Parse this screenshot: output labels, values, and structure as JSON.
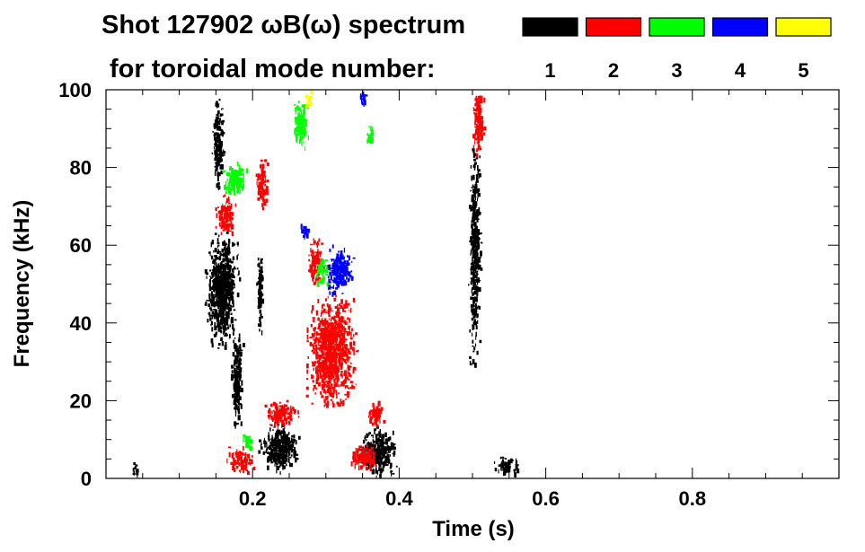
{
  "chart_data": {
    "type": "heatmap",
    "title_line1": "Shot 127902 ωB(ω) spectrum",
    "title_line2": "for toroidal mode number:",
    "xlabel": "Time (s)",
    "ylabel": "Frequency (kHz)",
    "xlim": [
      0,
      1.0
    ],
    "ylim": [
      0,
      100
    ],
    "x_ticks": [
      0.2,
      0.4,
      0.6,
      0.8
    ],
    "x_tick_labels": [
      "0.2",
      "0.4",
      "0.6",
      "0.8"
    ],
    "y_ticks": [
      0,
      20,
      40,
      60,
      80,
      100
    ],
    "y_tick_labels": [
      "0",
      "20",
      "40",
      "60",
      "80",
      "100"
    ],
    "legend": {
      "placement": "top-right",
      "entries": [
        {
          "label": "1",
          "color": "#000000"
        },
        {
          "label": "2",
          "color": "#ff0000"
        },
        {
          "label": "3",
          "color": "#00ff00"
        },
        {
          "label": "4",
          "color": "#0000ff"
        },
        {
          "label": "5",
          "color": "#ffff00"
        }
      ]
    },
    "series": [
      {
        "mode": "1",
        "color": "#000000",
        "blobs": [
          {
            "t": [
              0.135,
              0.18
            ],
            "f": [
              34,
              64
            ]
          },
          {
            "t": [
              0.145,
              0.16
            ],
            "f": [
              75,
              98
            ]
          },
          {
            "t": [
              0.17,
              0.185
            ],
            "f": [
              14,
              38
            ]
          },
          {
            "t": [
              0.205,
              0.213
            ],
            "f": [
              38,
              60
            ]
          },
          {
            "t": [
              0.21,
              0.26
            ],
            "f": [
              2,
              14
            ]
          },
          {
            "t": [
              0.345,
              0.395
            ],
            "f": [
              1,
              13
            ]
          },
          {
            "t": [
              0.495,
              0.51
            ],
            "f": [
              30,
              86
            ]
          },
          {
            "t": [
              0.53,
              0.56
            ],
            "f": [
              1,
              6
            ]
          },
          {
            "t": [
              0.035,
              0.045
            ],
            "f": [
              1,
              4
            ]
          }
        ]
      },
      {
        "mode": "2",
        "color": "#ff0000",
        "blobs": [
          {
            "t": [
              0.15,
              0.175
            ],
            "f": [
              63,
              73
            ]
          },
          {
            "t": [
              0.205,
              0.22
            ],
            "f": [
              70,
              83
            ]
          },
          {
            "t": [
              0.275,
              0.34
            ],
            "f": [
              19,
              47
            ]
          },
          {
            "t": [
              0.215,
              0.26
            ],
            "f": [
              14,
              20
            ]
          },
          {
            "t": [
              0.165,
              0.2
            ],
            "f": [
              2,
              8
            ]
          },
          {
            "t": [
              0.5,
              0.515
            ],
            "f": [
              84,
              100
            ]
          },
          {
            "t": [
              0.355,
              0.38
            ],
            "f": [
              14,
              20
            ]
          },
          {
            "t": [
              0.33,
              0.37
            ],
            "f": [
              3,
              9
            ]
          },
          {
            "t": [
              0.275,
              0.295
            ],
            "f": [
              50,
              62
            ]
          }
        ]
      },
      {
        "mode": "3",
        "color": "#00ff00",
        "blobs": [
          {
            "t": [
              0.16,
              0.19
            ],
            "f": [
              73,
              82
            ]
          },
          {
            "t": [
              0.255,
              0.275
            ],
            "f": [
              85,
              98
            ]
          },
          {
            "t": [
              0.285,
              0.3
            ],
            "f": [
              50,
              57
            ]
          },
          {
            "t": [
              0.355,
              0.365
            ],
            "f": [
              85,
              92
            ]
          },
          {
            "t": [
              0.185,
              0.2
            ],
            "f": [
              8,
              12
            ]
          }
        ]
      },
      {
        "mode": "4",
        "color": "#0000ff",
        "blobs": [
          {
            "t": [
              0.3,
              0.335
            ],
            "f": [
              48,
              60
            ]
          },
          {
            "t": [
              0.265,
              0.275
            ],
            "f": [
              62,
              66
            ]
          },
          {
            "t": [
              0.345,
              0.355
            ],
            "f": [
              96,
              100
            ]
          }
        ]
      },
      {
        "mode": "5",
        "color": "#ffff00",
        "blobs": [
          {
            "t": [
              0.272,
              0.28
            ],
            "f": [
              96,
              100
            ]
          }
        ]
      }
    ]
  }
}
